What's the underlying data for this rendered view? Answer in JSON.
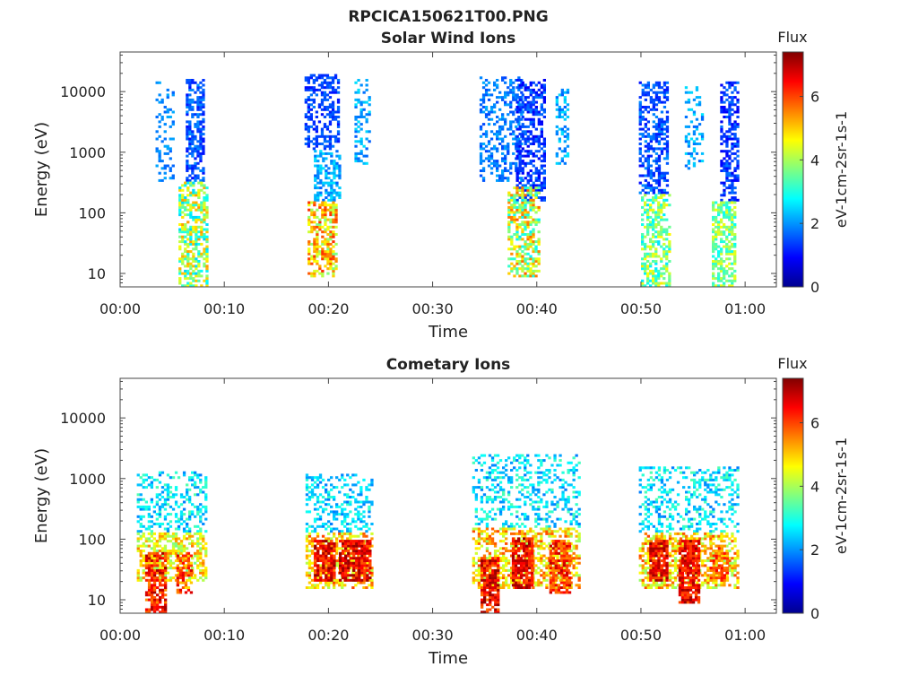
{
  "figure": {
    "title": "RPCICA150621T00.PNG"
  },
  "colorbar": {
    "title": "Flux",
    "label": "eV-1cm-2sr-1s-1",
    "ticks": [
      0,
      2,
      4,
      6
    ],
    "range": [
      0,
      7.4
    ],
    "colormap": [
      "#00008f",
      "#0000ff",
      "#0080ff",
      "#00ffff",
      "#80ff80",
      "#ffff00",
      "#ff8000",
      "#ff0000",
      "#800000"
    ]
  },
  "chart_data": [
    {
      "type": "heatmap",
      "title": "Solar Wind Ions",
      "xlabel": "Time",
      "ylabel": "Energy (eV)",
      "x_ticks": [
        "00:00",
        "00:10",
        "00:20",
        "00:30",
        "00:40",
        "00:50",
        "01:00"
      ],
      "x_tick_minutes": [
        0,
        10,
        20,
        30,
        40,
        50,
        60
      ],
      "xlim_minutes": [
        0,
        63
      ],
      "y_scale": "log",
      "y_ticks": [
        "10",
        "100",
        "1000",
        "10000"
      ],
      "y_tick_values": [
        10,
        100,
        1000,
        10000
      ],
      "ylim": [
        6,
        45000
      ],
      "z_label": "Flux",
      "z_range": [
        0,
        7.4
      ],
      "bursts": [
        {
          "t0": 3.4,
          "t1": 5.2,
          "emin": 300,
          "emax": 14000,
          "fmin": 1.6,
          "fmax": 2.2,
          "density": 0.3
        },
        {
          "t0": 6.3,
          "t1": 8.0,
          "emin": 300,
          "emax": 15000,
          "fmin": 1.0,
          "fmax": 2.0,
          "density": 0.55
        },
        {
          "t0": 5.6,
          "t1": 8.2,
          "emin": 6,
          "emax": 300,
          "fmin": 2.4,
          "fmax": 5.4,
          "density": 0.6
        },
        {
          "t0": 17.7,
          "t1": 21.0,
          "emin": 1000,
          "emax": 18000,
          "fmin": 1.0,
          "fmax": 1.8,
          "density": 0.5
        },
        {
          "t0": 18.6,
          "t1": 21.0,
          "emin": 150,
          "emax": 1000,
          "fmin": 1.6,
          "fmax": 2.6,
          "density": 0.55
        },
        {
          "t0": 18.0,
          "t1": 20.8,
          "emin": 8,
          "emax": 150,
          "fmin": 3.6,
          "fmax": 6.2,
          "density": 0.6
        },
        {
          "t0": 22.5,
          "t1": 24.0,
          "emin": 600,
          "emax": 15000,
          "fmin": 1.6,
          "fmax": 2.6,
          "density": 0.3
        },
        {
          "t0": 34.5,
          "t1": 38.6,
          "emin": 300,
          "emax": 17000,
          "fmin": 1.4,
          "fmax": 2.2,
          "density": 0.35
        },
        {
          "t0": 38.0,
          "t1": 40.6,
          "emin": 150,
          "emax": 15000,
          "fmin": 0.8,
          "fmax": 1.8,
          "density": 0.55
        },
        {
          "t0": 37.2,
          "t1": 40.2,
          "emin": 8,
          "emax": 250,
          "fmin": 2.6,
          "fmax": 5.8,
          "density": 0.6
        },
        {
          "t0": 41.8,
          "t1": 43.0,
          "emin": 600,
          "emax": 11000,
          "fmin": 1.6,
          "fmax": 2.6,
          "density": 0.3
        },
        {
          "t0": 49.8,
          "t1": 52.4,
          "emin": 200,
          "emax": 14000,
          "fmin": 1.0,
          "fmax": 2.0,
          "density": 0.5
        },
        {
          "t0": 50.0,
          "t1": 52.6,
          "emin": 6,
          "emax": 200,
          "fmin": 2.6,
          "fmax": 4.8,
          "density": 0.55
        },
        {
          "t0": 54.2,
          "t1": 55.8,
          "emin": 500,
          "emax": 12000,
          "fmin": 1.6,
          "fmax": 2.6,
          "density": 0.3
        },
        {
          "t0": 57.6,
          "t1": 59.4,
          "emin": 150,
          "emax": 14000,
          "fmin": 0.8,
          "fmax": 1.8,
          "density": 0.55
        },
        {
          "t0": 56.8,
          "t1": 59.0,
          "emin": 6,
          "emax": 150,
          "fmin": 2.8,
          "fmax": 4.6,
          "density": 0.6
        }
      ]
    },
    {
      "type": "heatmap",
      "title": "Cometary Ions",
      "xlabel": "Time",
      "ylabel": "Energy (eV)",
      "x_ticks": [
        "00:00",
        "00:10",
        "00:20",
        "00:30",
        "00:40",
        "00:50",
        "01:00"
      ],
      "x_tick_minutes": [
        0,
        10,
        20,
        30,
        40,
        50,
        60
      ],
      "xlim_minutes": [
        0,
        63
      ],
      "y_scale": "log",
      "y_ticks": [
        "10",
        "100",
        "1000",
        "10000"
      ],
      "y_tick_values": [
        10,
        100,
        1000,
        10000
      ],
      "ylim": [
        6,
        45000
      ],
      "z_label": "Flux",
      "z_range": [
        0,
        7.4
      ],
      "bursts": [
        {
          "t0": 1.6,
          "t1": 8.2,
          "emin": 120,
          "emax": 1200,
          "fmin": 1.8,
          "fmax": 3.4,
          "density": 0.35
        },
        {
          "t0": 1.6,
          "t1": 8.2,
          "emin": 20,
          "emax": 120,
          "fmin": 3.6,
          "fmax": 5.6,
          "density": 0.55
        },
        {
          "t0": 2.4,
          "t1": 4.4,
          "emin": 6,
          "emax": 60,
          "fmin": 5.4,
          "fmax": 7.2,
          "density": 0.7
        },
        {
          "t0": 5.4,
          "t1": 6.8,
          "emin": 12,
          "emax": 60,
          "fmin": 4.8,
          "fmax": 6.8,
          "density": 0.6
        },
        {
          "t0": 17.8,
          "t1": 24.2,
          "emin": 120,
          "emax": 1100,
          "fmin": 1.8,
          "fmax": 3.2,
          "density": 0.35
        },
        {
          "t0": 17.8,
          "t1": 24.2,
          "emin": 15,
          "emax": 120,
          "fmin": 4.0,
          "fmax": 6.0,
          "density": 0.55
        },
        {
          "t0": 18.6,
          "t1": 20.6,
          "emin": 20,
          "emax": 90,
          "fmin": 5.8,
          "fmax": 7.3,
          "density": 0.75
        },
        {
          "t0": 21.0,
          "t1": 24.0,
          "emin": 20,
          "emax": 90,
          "fmin": 5.8,
          "fmax": 7.3,
          "density": 0.8
        },
        {
          "t0": 33.8,
          "t1": 44.0,
          "emin": 150,
          "emax": 2500,
          "fmin": 1.8,
          "fmax": 3.4,
          "density": 0.3
        },
        {
          "t0": 33.8,
          "t1": 44.0,
          "emin": 15,
          "emax": 150,
          "fmin": 3.8,
          "fmax": 6.0,
          "density": 0.5
        },
        {
          "t0": 34.6,
          "t1": 36.2,
          "emin": 6,
          "emax": 50,
          "fmin": 5.6,
          "fmax": 7.3,
          "density": 0.75
        },
        {
          "t0": 37.6,
          "t1": 39.6,
          "emin": 15,
          "emax": 100,
          "fmin": 5.8,
          "fmax": 7.3,
          "density": 0.75
        },
        {
          "t0": 41.2,
          "t1": 43.2,
          "emin": 12,
          "emax": 90,
          "fmin": 5.4,
          "fmax": 7.0,
          "density": 0.7
        },
        {
          "t0": 49.8,
          "t1": 59.4,
          "emin": 120,
          "emax": 1500,
          "fmin": 1.8,
          "fmax": 3.4,
          "density": 0.35
        },
        {
          "t0": 49.8,
          "t1": 59.4,
          "emin": 15,
          "emax": 120,
          "fmin": 3.8,
          "fmax": 6.0,
          "density": 0.55
        },
        {
          "t0": 50.8,
          "t1": 52.4,
          "emin": 20,
          "emax": 90,
          "fmin": 5.8,
          "fmax": 7.3,
          "density": 0.75
        },
        {
          "t0": 53.6,
          "t1": 55.6,
          "emin": 8,
          "emax": 90,
          "fmin": 5.8,
          "fmax": 7.3,
          "density": 0.8
        },
        {
          "t0": 56.6,
          "t1": 58.4,
          "emin": 20,
          "emax": 80,
          "fmin": 5.0,
          "fmax": 6.6,
          "density": 0.65
        }
      ]
    }
  ]
}
